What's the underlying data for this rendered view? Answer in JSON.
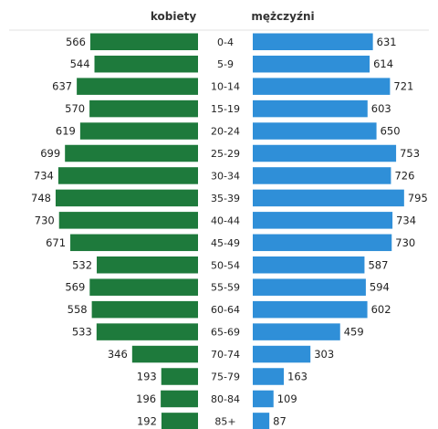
{
  "chart_data": {
    "type": "bar",
    "headers": {
      "left": "kobiety",
      "right": "mężczyźni"
    },
    "categories": [
      "0-4",
      "5-9",
      "10-14",
      "15-19",
      "20-24",
      "25-29",
      "30-34",
      "35-39",
      "40-44",
      "45-49",
      "50-54",
      "55-59",
      "60-64",
      "65-69",
      "70-74",
      "75-79",
      "80-84",
      "85+"
    ],
    "series": [
      {
        "name": "kobiety",
        "color": "#1e7a3c",
        "values": [
          566,
          544,
          637,
          570,
          619,
          699,
          734,
          748,
          730,
          671,
          532,
          569,
          558,
          533,
          346,
          193,
          196,
          192
        ]
      },
      {
        "name": "mężczyźni",
        "color": "#2f8fd8",
        "values": [
          631,
          614,
          721,
          603,
          650,
          753,
          726,
          795,
          734,
          730,
          587,
          594,
          602,
          459,
          303,
          163,
          109,
          87
        ]
      }
    ]
  }
}
